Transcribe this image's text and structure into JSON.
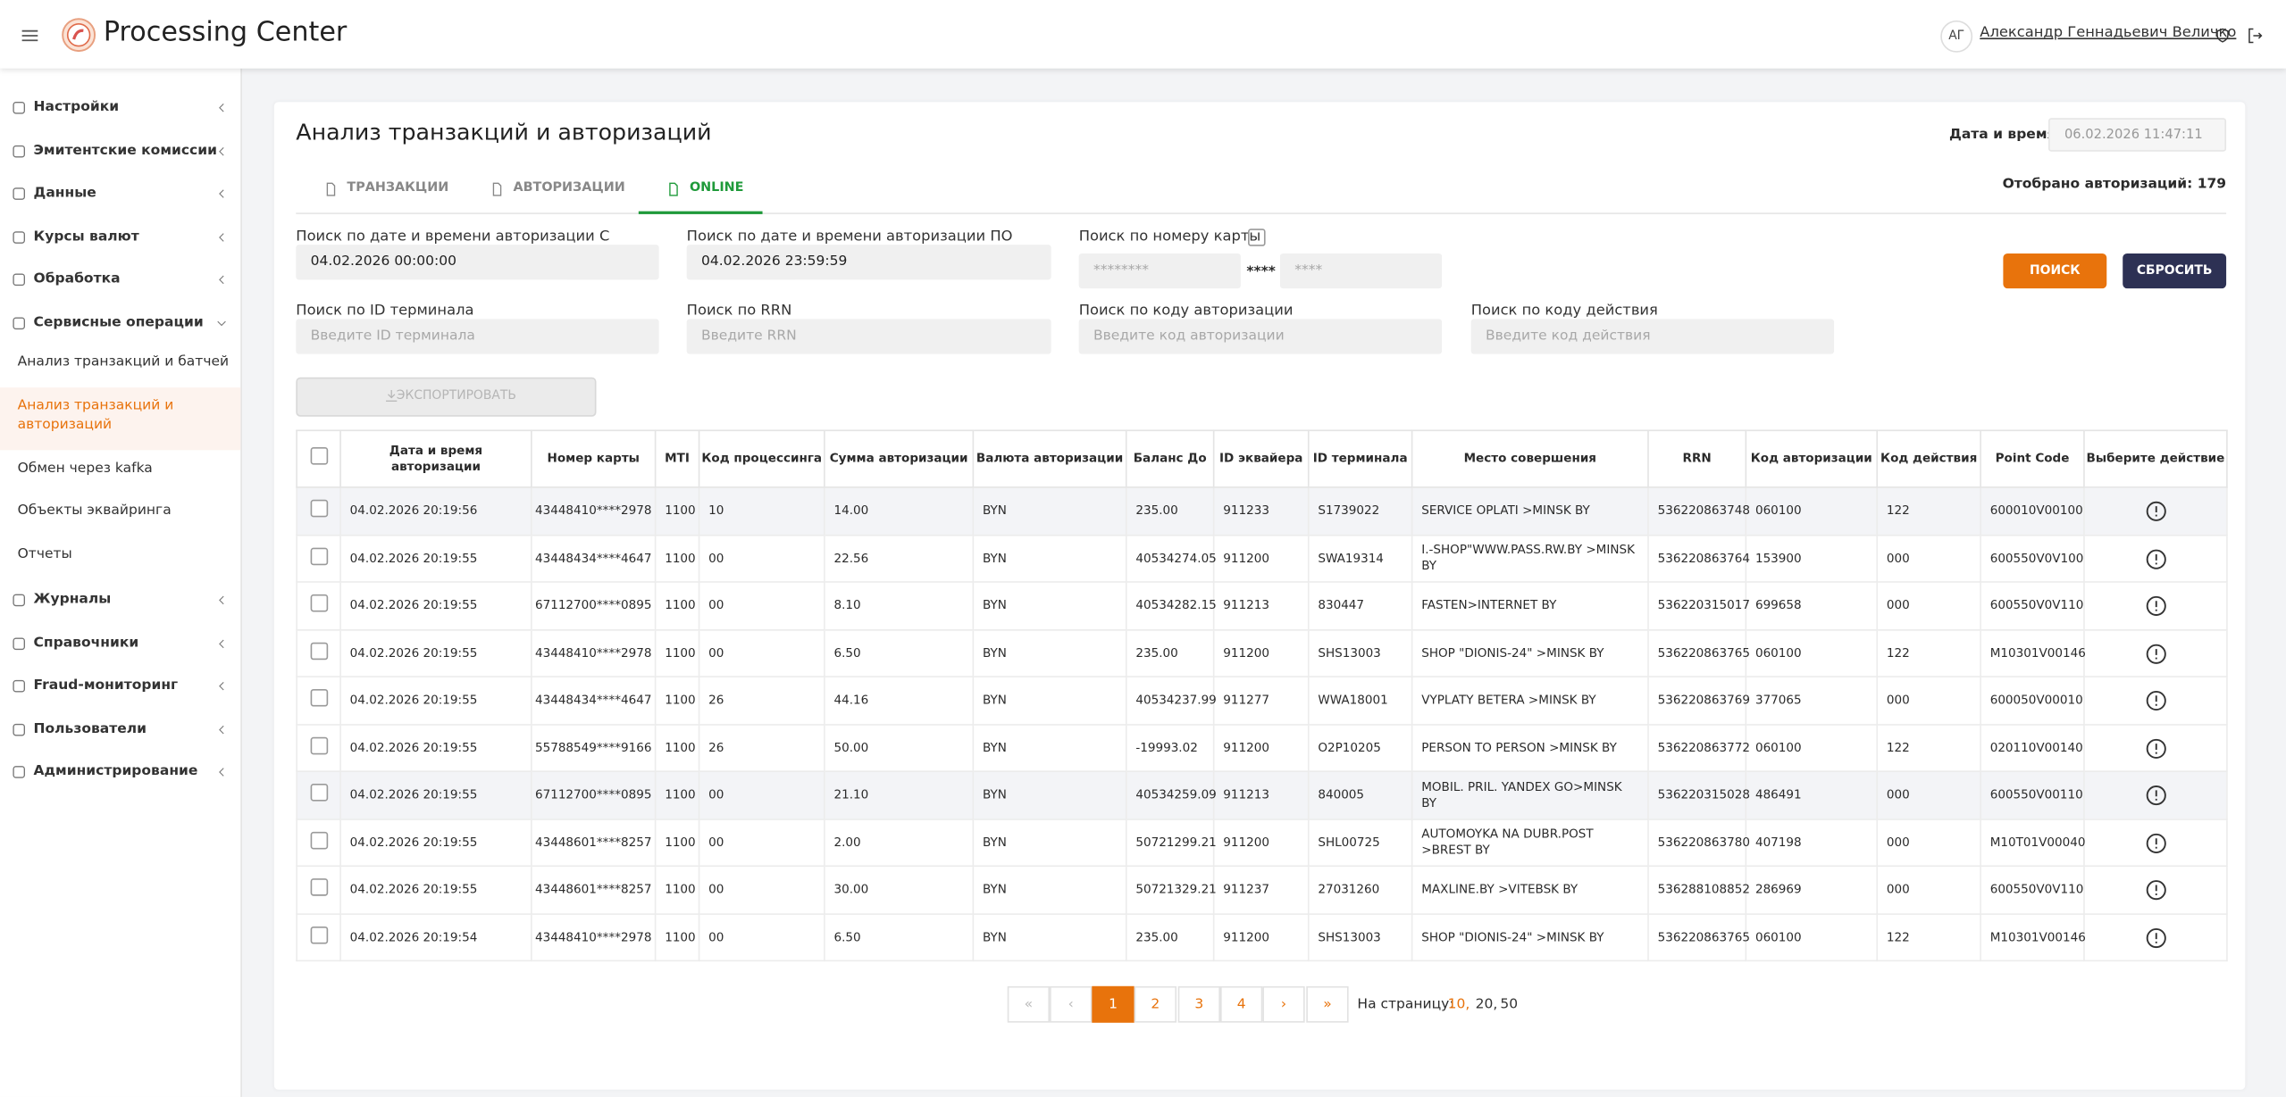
{
  "header": {
    "title": "Processing Center",
    "initials": "АГ",
    "user": "Александр Геннадьевич Величко"
  },
  "sidebar": {
    "items": [
      {
        "label": "Настройки"
      },
      {
        "label": "Эмитентские комиссии"
      },
      {
        "label": "Данные"
      },
      {
        "label": "Курсы валют"
      },
      {
        "label": "Обработка"
      },
      {
        "label": "Сервисные операции",
        "children": [
          "Анализ транзакций и батчей",
          "Анализ транзакций и авторизаций",
          "Обмен через kafka",
          "Объекты эквайринга",
          "Отчеты"
        ]
      },
      {
        "label": "Журналы"
      },
      {
        "label": "Справочники"
      },
      {
        "label": "Fraud-мониторинг"
      },
      {
        "label": "Пользователи"
      },
      {
        "label": "Администрирование"
      }
    ]
  },
  "page": {
    "title": "Анализ транзакций и авторизаций",
    "datetime_label": "Дата и время",
    "datetime": "06.02.2026 11:47:11",
    "tabs": [
      "ТРАНЗАКЦИИ",
      "АВТОРИЗАЦИИ",
      "ONLINE"
    ],
    "count_label": "Отобрано авторизаций: 179"
  },
  "filters": {
    "date_from": {
      "label": "Поиск по дате и времени авторизации С",
      "value": "04.02.2026 00:00:00"
    },
    "date_to": {
      "label": "Поиск по дате и времени авторизации ПО",
      "value": "04.02.2026 23:59:59"
    },
    "card": {
      "label": "Поиск по номеру карты",
      "placeholder_start": "********",
      "middle": "****",
      "placeholder_end": "****"
    },
    "terminal": {
      "label": "Поиск по ID терминала",
      "placeholder": "Введите ID терминала"
    },
    "rrn": {
      "label": "Поиск по RRN",
      "placeholder": "Введите RRN"
    },
    "auth_code": {
      "label": "Поиск по коду авторизации",
      "placeholder": "Введите код авторизации"
    },
    "action_code": {
      "label": "Поиск по коду действия",
      "placeholder": "Введите код действия"
    }
  },
  "buttons": {
    "search": "ПОИСК",
    "reset": "СБРОСИТЬ",
    "export": "ЭКСПОРТИРОВАТЬ"
  },
  "table": {
    "columns": [
      "Дата и время авторизации",
      "Номер карты",
      "MTI",
      "Код процессинга",
      "Сумма авторизации",
      "Валюта авторизации",
      "Баланс До",
      "ID эквайера",
      "ID терминала",
      "Место совершения",
      "RRN",
      "Код авторизации",
      "Код действия",
      "Point Code",
      "Выберите действие"
    ],
    "rows": [
      [
        "04.02.2026 20:19:56",
        "43448410****2978",
        "1100",
        "10",
        "14.00",
        "BYN",
        "235.00",
        "911233",
        "S1739022",
        "SERVICE OPLATI >MINSK BY",
        "536220863748",
        "060100",
        "122",
        "600010V00100"
      ],
      [
        "04.02.2026 20:19:55",
        "43448434****4647",
        "1100",
        "00",
        "22.56",
        "BYN",
        "40534274.05",
        "911200",
        "SWA19314",
        "I.-SHOP\"WWW.PASS.RW.BY >MINSK BY",
        "536220863764",
        "153900",
        "000",
        "600550V0V100"
      ],
      [
        "04.02.2026 20:19:55",
        "67112700****0895",
        "1100",
        "00",
        "8.10",
        "BYN",
        "40534282.15",
        "911213",
        "830447",
        "FASTEN>INTERNET BY",
        "536220315017",
        "699658",
        "000",
        "600550V0V110"
      ],
      [
        "04.02.2026 20:19:55",
        "43448410****2978",
        "1100",
        "00",
        "6.50",
        "BYN",
        "235.00",
        "911200",
        "SHS13003",
        "SHOP \"DIONIS-24\" >MINSK BY",
        "536220863765",
        "060100",
        "122",
        "M10301V00146"
      ],
      [
        "04.02.2026 20:19:55",
        "43448434****4647",
        "1100",
        "26",
        "44.16",
        "BYN",
        "40534237.99",
        "911277",
        "WWA18001",
        "VYPLATY BETERA >MINSK BY",
        "536220863769",
        "377065",
        "000",
        "600050V00010"
      ],
      [
        "04.02.2026 20:19:55",
        "55788549****9166",
        "1100",
        "26",
        "50.00",
        "BYN",
        "-19993.02",
        "911200",
        "O2P10205",
        "PERSON TO PERSON >MINSK BY",
        "536220863772",
        "060100",
        "122",
        "020110V00140"
      ],
      [
        "04.02.2026 20:19:55",
        "67112700****0895",
        "1100",
        "00",
        "21.10",
        "BYN",
        "40534259.09",
        "911213",
        "840005",
        "MOBIL. PRIL. YANDEX GO>MINSK BY",
        "536220315028",
        "486491",
        "000",
        "600550V00110"
      ],
      [
        "04.02.2026 20:19:55",
        "43448601****8257",
        "1100",
        "00",
        "2.00",
        "BYN",
        "50721299.21",
        "911200",
        "SHL00725",
        "AUTOMOYKA NA DUBR.POST >BREST BY",
        "536220863780",
        "407198",
        "000",
        "M10T01V00040"
      ],
      [
        "04.02.2026 20:19:55",
        "43448601****8257",
        "1100",
        "00",
        "30.00",
        "BYN",
        "50721329.21",
        "911237",
        "27031260",
        "MAXLINE.BY >VITEBSK BY",
        "536288108852",
        "286969",
        "000",
        "600550V0V110"
      ],
      [
        "04.02.2026 20:19:54",
        "43448410****2978",
        "1100",
        "00",
        "6.50",
        "BYN",
        "235.00",
        "911200",
        "SHS13003",
        "SHOP \"DIONIS-24\" >MINSK BY",
        "536220863765",
        "060100",
        "122",
        "M10301V00146"
      ]
    ]
  },
  "pagination": {
    "buttons": [
      "«",
      "‹",
      "1",
      "2",
      "3",
      "4",
      "›",
      "»"
    ],
    "per_page_label": "На страницу:",
    "per_page": [
      "10,",
      "20,",
      "50"
    ]
  }
}
